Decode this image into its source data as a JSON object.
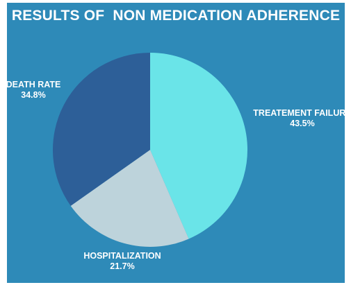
{
  "chart_data": {
    "type": "pie",
    "title": "RESULTS OF  NON MEDICATION ADHERENCE",
    "slices": [
      {
        "label": "TREATEMENT FAILURE",
        "value": 43.5,
        "value_label": "43.5%",
        "color": "#6ae4e8"
      },
      {
        "label": "HOSPITALIZATION",
        "value": 21.7,
        "value_label": "21.7%",
        "color": "#bdd3db"
      },
      {
        "label": "DEATH RATE",
        "value": 34.8,
        "value_label": "34.8%",
        "color": "#2d5f98"
      }
    ],
    "start_angle": "12 o'clock, clockwise",
    "background": "#2e8ab8"
  }
}
